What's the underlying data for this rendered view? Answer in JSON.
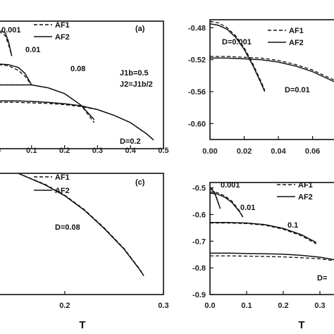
{
  "chart_data": [
    {
      "panel_label": "(a)",
      "type": "line",
      "xlabel": "",
      "ylabel": "",
      "xlim": [
        0.0,
        0.5
      ],
      "xticks": [
        "0",
        "0.1",
        "0.2",
        "0.3",
        "0.4",
        "0.5"
      ],
      "ylim": [
        -0.92,
        -0.48
      ],
      "yticks": [],
      "legend": {
        "placement": "top-center",
        "entries": [
          {
            "label": "AF1",
            "style": "dashed"
          },
          {
            "label": "AF2",
            "style": "solid"
          }
        ]
      },
      "annotations": [
        "0.001",
        "0.01",
        "0.08",
        "D=0.2",
        "J1b=0.5",
        "J2=J1b/2"
      ],
      "series": [
        {
          "label": "0.001",
          "x": [
            0.0,
            0.01,
            0.02,
            0.03,
            0.04
          ],
          "af1": [
            -0.52,
            -0.52,
            -0.53,
            -0.56,
            -0.6
          ],
          "af2": [
            -0.515,
            -0.515,
            -0.52,
            -0.55,
            -0.6
          ]
        },
        {
          "label": "0.01",
          "x": [
            0.0,
            0.03,
            0.06,
            0.08,
            0.1
          ],
          "af1": [
            -0.63,
            -0.634,
            -0.65,
            -0.67,
            -0.7
          ],
          "af2": [
            -0.628,
            -0.63,
            -0.64,
            -0.66,
            -0.7
          ]
        },
        {
          "label": "0.08",
          "x": [
            0.0,
            0.05,
            0.1,
            0.15,
            0.2,
            0.25,
            0.29
          ],
          "af1": [
            -0.7,
            -0.7,
            -0.7,
            -0.71,
            -0.73,
            -0.77,
            -0.83
          ],
          "af2": [
            -0.7,
            -0.7,
            -0.7,
            -0.71,
            -0.73,
            -0.77,
            -0.82
          ]
        },
        {
          "label": "D=0.2",
          "x": [
            0.0,
            0.05,
            0.1,
            0.15,
            0.2,
            0.25,
            0.3,
            0.35,
            0.4,
            0.45,
            0.47
          ],
          "af1": [
            -0.76,
            -0.76,
            -0.762,
            -0.764,
            -0.768,
            -0.775,
            -0.785,
            -0.805,
            -0.83,
            -0.87,
            -0.89
          ],
          "af2": [
            -0.755,
            -0.755,
            -0.757,
            -0.76,
            -0.765,
            -0.772,
            -0.785,
            -0.805,
            -0.83,
            -0.87,
            -0.89
          ]
        }
      ]
    },
    {
      "panel_label": "(b)",
      "type": "line",
      "xlabel": "",
      "ylabel": "",
      "xlim": [
        0.0,
        0.075
      ],
      "xticks": [
        "0.00",
        "0.02",
        "0.04",
        "0.06"
      ],
      "ylim": [
        -0.62,
        -0.47
      ],
      "yticks": [
        "-0.48",
        "-0.52",
        "-0.56",
        "-0.60"
      ],
      "legend": {
        "placement": "top-right",
        "entries": [
          {
            "label": "AF1",
            "style": "dashed"
          },
          {
            "label": "AF2",
            "style": "solid"
          }
        ]
      },
      "annotations": [
        "D=0.001",
        "D=0.01"
      ],
      "series": [
        {
          "label": "D=0.001",
          "x": [
            0.0,
            0.005,
            0.01,
            0.015,
            0.02,
            0.025,
            0.03,
            0.032
          ],
          "af1": [
            -0.472,
            -0.474,
            -0.48,
            -0.49,
            -0.505,
            -0.525,
            -0.548,
            -0.558
          ],
          "af2": [
            -0.475,
            -0.477,
            -0.482,
            -0.492,
            -0.507,
            -0.527,
            -0.55,
            -0.56
          ]
        },
        {
          "label": "D=0.01",
          "x": [
            0.0,
            0.01,
            0.02,
            0.03,
            0.04,
            0.05,
            0.06,
            0.07,
            0.075
          ],
          "af1": [
            -0.516,
            -0.516,
            -0.517,
            -0.518,
            -0.521,
            -0.526,
            -0.533,
            -0.543,
            -0.548
          ],
          "af2": [
            -0.518,
            -0.518,
            -0.519,
            -0.52,
            -0.523,
            -0.528,
            -0.535,
            -0.545,
            -0.55
          ]
        }
      ]
    },
    {
      "panel_label": "(c)",
      "type": "line",
      "xlabel": "T",
      "ylabel": "",
      "xlim": [
        0.133,
        0.3
      ],
      "xticks": [
        "0.2",
        "0.3"
      ],
      "ylim": [
        0.0,
        1.0
      ],
      "yticks": [],
      "legend": {
        "placement": "top-center",
        "entries": [
          {
            "label": "AF1",
            "style": "dashed"
          },
          {
            "label": "AF2",
            "style": "solid"
          }
        ]
      },
      "annotations": [
        "D=0.08"
      ],
      "series": [
        {
          "label": "D=0.08",
          "x": [
            0.153,
            0.18,
            0.2,
            0.22,
            0.24,
            0.26,
            0.275,
            0.28
          ],
          "af1": [
            1.0,
            0.91,
            0.82,
            0.7,
            0.55,
            0.38,
            0.22,
            0.16
          ],
          "af2": [
            1.0,
            0.905,
            0.815,
            0.695,
            0.545,
            0.375,
            0.215,
            0.155
          ]
        }
      ]
    },
    {
      "panel_label": "",
      "type": "line",
      "xlabel": "T",
      "ylabel": "",
      "xlim": [
        0.0,
        0.35
      ],
      "xticks": [
        "0.0",
        "0.1",
        "0.2",
        "0.3"
      ],
      "ylim": [
        -0.9,
        -0.48
      ],
      "yticks": [
        "-0.5",
        "-0.6",
        "-0.7",
        "-0.8",
        "-0.9"
      ],
      "legend": {
        "placement": "top-right",
        "entries": [
          {
            "label": "AF1",
            "style": "dashed"
          },
          {
            "label": "AF2",
            "style": "solid"
          }
        ]
      },
      "annotations": [
        "0.001",
        "0.01",
        "0.1",
        "D="
      ],
      "series": [
        {
          "label": "0.001",
          "x": [
            0.0,
            0.005,
            0.01,
            0.015,
            0.02,
            0.025,
            0.028
          ],
          "af1": [
            -0.5,
            -0.502,
            -0.51,
            -0.525,
            -0.545,
            -0.565,
            -0.578
          ],
          "af2": [
            -0.505,
            -0.507,
            -0.514,
            -0.528,
            -0.547,
            -0.566,
            -0.578
          ]
        },
        {
          "label": "0.01",
          "x": [
            0.0,
            0.02,
            0.04,
            0.06,
            0.08,
            0.09
          ],
          "af1": [
            -0.515,
            -0.518,
            -0.53,
            -0.55,
            -0.585,
            -0.61
          ],
          "af2": [
            -0.52,
            -0.523,
            -0.535,
            -0.555,
            -0.588,
            -0.61
          ]
        },
        {
          "label": "0.1",
          "x": [
            0.0,
            0.05,
            0.1,
            0.15,
            0.2,
            0.25,
            0.29
          ],
          "af1": [
            -0.632,
            -0.632,
            -0.634,
            -0.64,
            -0.655,
            -0.68,
            -0.71
          ],
          "af2": [
            -0.63,
            -0.63,
            -0.632,
            -0.638,
            -0.652,
            -0.676,
            -0.705
          ]
        },
        {
          "label": "D=",
          "x": [
            0.0,
            0.05,
            0.1,
            0.15,
            0.2,
            0.25,
            0.3,
            0.35
          ],
          "af1": [
            -0.755,
            -0.755,
            -0.756,
            -0.757,
            -0.759,
            -0.762,
            -0.766,
            -0.775
          ],
          "af2": [
            -0.745,
            -0.745,
            -0.746,
            -0.747,
            -0.749,
            -0.753,
            -0.76,
            -0.772
          ]
        }
      ]
    }
  ]
}
